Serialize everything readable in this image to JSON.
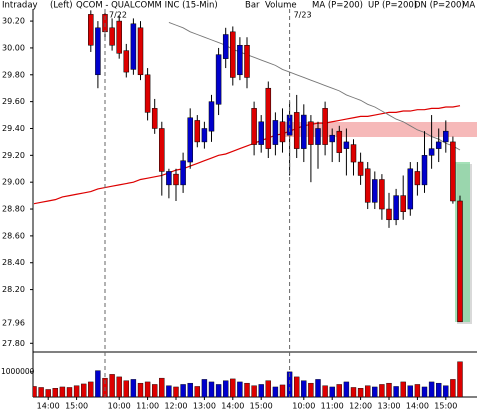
{
  "chart_data": {
    "type": "candlestick",
    "header": [
      "Intraday",
      "(Left)"
    ],
    "title": "QCOM - QUALCOMM INC (15-Min)",
    "bar_label": "Bar",
    "volume_label": "Volume",
    "volume_label_color": "#00b000",
    "legend": [
      {
        "label": "UP (P=200)",
        "color": "#00a000"
      },
      {
        "label": "DN (P=200)",
        "color": "#0000cc"
      }
    ],
    "categories": [
      null,
      null,
      "14:00",
      null,
      null,
      null,
      "15:00",
      null,
      null,
      null,
      null,
      null,
      "10:00",
      null,
      null,
      null,
      "11:00",
      null,
      null,
      null,
      "12:00",
      null,
      null,
      null,
      "13:00",
      null,
      null,
      null,
      "14:00",
      null,
      null,
      null,
      "15:00",
      null,
      null,
      null,
      null,
      null,
      "10:00",
      null,
      null,
      null,
      "11:00",
      null,
      null,
      null,
      "12:00",
      null,
      null,
      null,
      "13:00",
      null,
      null,
      null,
      "14:00",
      null,
      null,
      null,
      "15:00",
      null,
      null
    ],
    "dates": [
      "7/22",
      "7/23"
    ],
    "open": [
      null,
      null,
      null,
      null,
      null,
      null,
      null,
      null,
      30.25,
      29.8,
      30.25,
      30.15,
      30.2,
      29.98,
      29.84,
      30.15,
      29.8,
      29.55,
      29.4,
      28.98,
      29.06,
      28.98,
      29.15,
      29.46,
      29.3,
      29.38,
      29.58,
      29.92,
      30.12,
      29.8,
      30.02,
      29.55,
      29.28,
      29.7,
      29.28,
      29.45,
      29.35,
      29.52,
      29.25,
      29.45,
      29.28,
      29.55,
      29.3,
      29.38,
      29.25,
      29.28,
      29.15,
      29.1,
      28.85,
      29.02,
      28.8,
      28.72,
      28.9,
      28.8,
      29.08,
      28.98,
      29.2,
      29.25,
      29.3,
      29.3,
      28.86
    ],
    "high": [
      null,
      null,
      null,
      null,
      null,
      null,
      null,
      null,
      30.28,
      30.2,
      30.28,
      30.22,
      30.24,
      30.03,
      30.22,
      30.2,
      29.85,
      29.62,
      29.45,
      29.1,
      29.1,
      29.22,
      29.55,
      29.5,
      29.45,
      29.65,
      30.0,
      30.15,
      30.16,
      30.08,
      30.08,
      29.6,
      29.5,
      29.75,
      29.52,
      29.55,
      29.6,
      29.65,
      29.58,
      29.5,
      29.45,
      29.6,
      29.4,
      29.42,
      29.4,
      29.32,
      29.22,
      29.15,
      29.08,
      29.06,
      28.92,
      28.95,
      29.05,
      29.15,
      29.15,
      29.38,
      29.5,
      29.4,
      29.46,
      29.34,
      28.9
    ],
    "low": [
      null,
      null,
      null,
      null,
      null,
      null,
      null,
      null,
      29.97,
      29.7,
      30.08,
      29.98,
      29.92,
      29.78,
      29.8,
      29.76,
      29.46,
      29.36,
      28.9,
      28.88,
      28.86,
      28.92,
      29.1,
      29.26,
      29.25,
      29.3,
      29.5,
      29.85,
      29.72,
      29.76,
      29.7,
      29.2,
      29.22,
      29.18,
      29.2,
      29.22,
      29.05,
      29.18,
      29.15,
      29.0,
      29.1,
      29.2,
      29.15,
      29.15,
      29.05,
      29.05,
      28.98,
      28.8,
      28.8,
      28.72,
      28.66,
      28.68,
      28.72,
      28.75,
      28.9,
      28.92,
      29.1,
      29.15,
      29.22,
      28.84,
      27.96
    ],
    "close": [
      null,
      null,
      null,
      null,
      null,
      null,
      null,
      null,
      30.02,
      30.15,
      30.12,
      30.02,
      29.96,
      29.82,
      30.18,
      29.8,
      29.52,
      29.4,
      29.08,
      29.08,
      28.98,
      29.16,
      29.48,
      29.3,
      29.4,
      29.6,
      29.95,
      30.1,
      29.78,
      30.02,
      29.78,
      29.28,
      29.45,
      29.25,
      29.46,
      29.3,
      29.5,
      29.25,
      29.5,
      29.28,
      29.4,
      29.28,
      29.35,
      29.22,
      29.3,
      29.15,
      29.05,
      28.85,
      29.02,
      28.8,
      28.72,
      28.9,
      28.78,
      29.1,
      28.98,
      29.2,
      29.25,
      29.3,
      29.38,
      28.86,
      27.96
    ],
    "up_color": "#0000cc",
    "down_color": "#dd0000",
    "series": [
      {
        "name": "MA (P=200)",
        "color": "#dd0000",
        "values": [
          28.84,
          28.85,
          28.86,
          28.87,
          28.89,
          28.9,
          28.91,
          28.92,
          28.93,
          28.95,
          28.96,
          28.97,
          28.98,
          28.99,
          29.0,
          29.02,
          29.03,
          29.04,
          29.05,
          29.07,
          29.09,
          29.1,
          29.12,
          29.14,
          29.16,
          29.18,
          29.2,
          29.21,
          29.23,
          29.25,
          29.27,
          29.29,
          29.31,
          29.33,
          29.35,
          29.36,
          29.38,
          29.4,
          29.42,
          29.43,
          29.44,
          29.44,
          29.45,
          29.46,
          29.47,
          29.48,
          29.49,
          29.49,
          29.5,
          29.51,
          29.52,
          29.52,
          29.53,
          29.53,
          29.54,
          29.54,
          29.55,
          29.55,
          29.56,
          29.56,
          29.57
        ]
      },
      {
        "name": "MA",
        "color": "#777777",
        "values": [
          null,
          null,
          null,
          null,
          null,
          null,
          null,
          null,
          null,
          null,
          null,
          null,
          null,
          null,
          null,
          null,
          null,
          null,
          null,
          30.19,
          30.17,
          30.15,
          30.12,
          30.1,
          30.08,
          30.06,
          30.04,
          30.02,
          29.99,
          29.97,
          29.95,
          29.93,
          29.91,
          29.89,
          29.87,
          29.84,
          29.82,
          29.8,
          29.78,
          29.76,
          29.74,
          29.72,
          29.7,
          29.68,
          29.65,
          29.63,
          29.61,
          29.58,
          29.56,
          29.53,
          29.5,
          29.47,
          29.45,
          29.42,
          29.39,
          29.37,
          29.34,
          29.32,
          29.29,
          29.27,
          29.24
        ]
      }
    ],
    "ylim": [
      27.75,
      30.29
    ],
    "yticks": [
      {
        "value": 30.2,
        "label": "30.20"
      },
      {
        "value": 30.0,
        "label": "30.00"
      },
      {
        "value": 29.8,
        "label": "29.80"
      },
      {
        "value": 29.6,
        "label": "29.60"
      },
      {
        "value": 29.4,
        "label": "29.40"
      },
      {
        "value": 29.2,
        "label": "29.20"
      },
      {
        "value": 29.0,
        "label": "29.00"
      },
      {
        "value": 28.8,
        "label": "28.80"
      },
      {
        "value": 28.6,
        "label": "28.60"
      },
      {
        "value": 28.4,
        "label": "28.40"
      },
      {
        "value": 28.2,
        "label": "28.20"
      },
      {
        "value": 27.8,
        "label": "27.80"
      }
    ],
    "last_price": 27.96,
    "volume": {
      "values": [
        420000,
        380000,
        300000,
        350000,
        400000,
        380000,
        450000,
        520000,
        600000,
        1050000,
        750000,
        900000,
        800000,
        650000,
        700000,
        550000,
        600000,
        500000,
        750000,
        450000,
        400000,
        500000,
        550000,
        420000,
        700000,
        600000,
        500000,
        650000,
        720000,
        600000,
        550000,
        450000,
        500000,
        650000,
        400000,
        480000,
        1000000,
        800000,
        650000,
        550000,
        700000,
        450000,
        400000,
        500000,
        600000,
        380000,
        350000,
        450000,
        400000,
        500000,
        550000,
        420000,
        600000,
        450000,
        500000,
        400000,
        600000,
        550000,
        450000,
        700000,
        1400000
      ],
      "ylim": [
        0,
        1750000
      ],
      "yticks": [
        1000000
      ],
      "color": "#dd0000"
    }
  }
}
